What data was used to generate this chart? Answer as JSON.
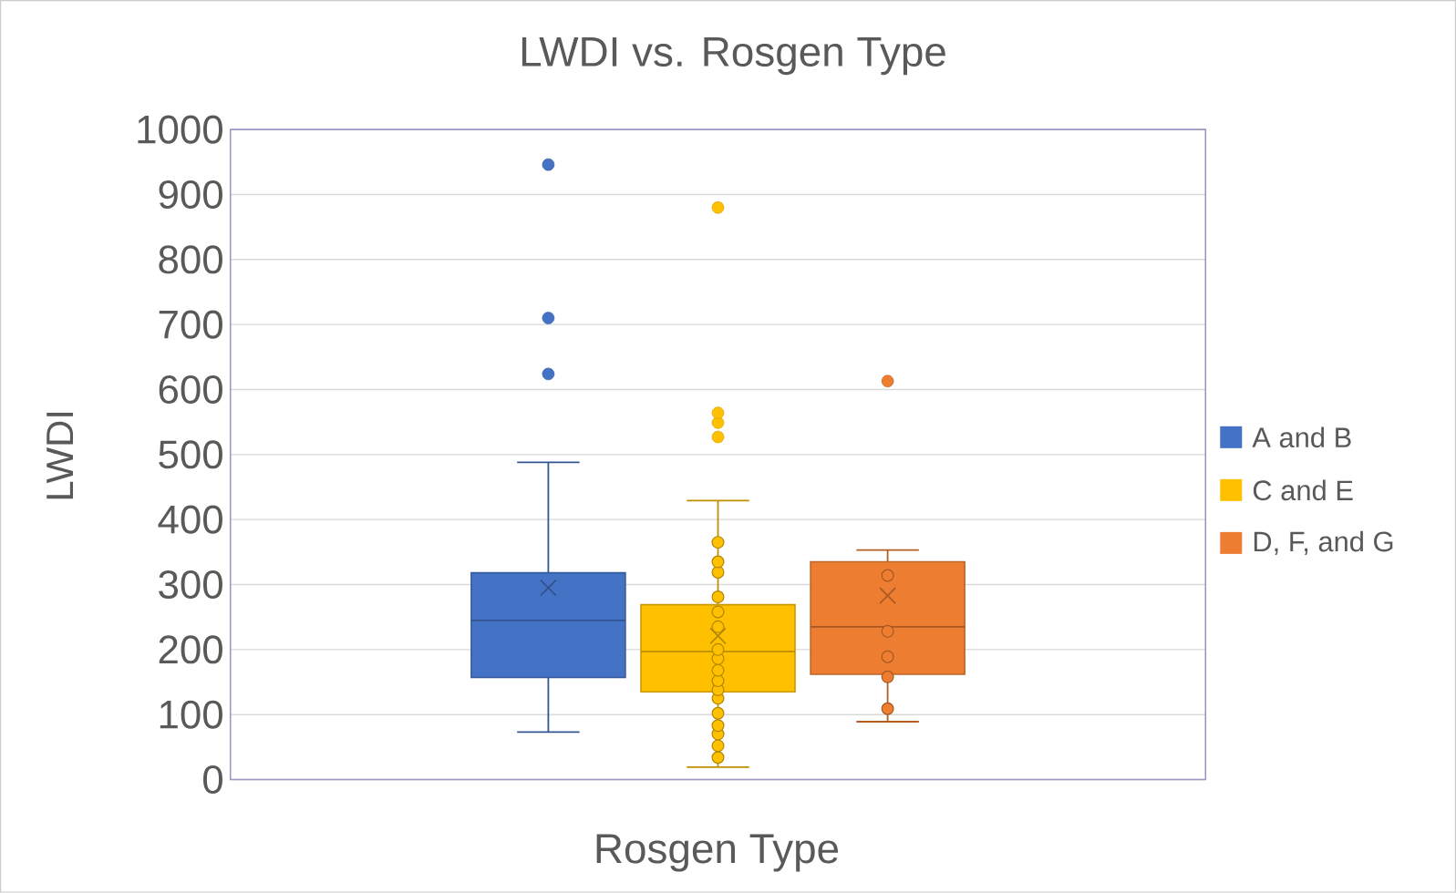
{
  "chart_data": {
    "type": "box",
    "title": "LWDI vs. Rosgen Type",
    "xlabel": "Rosgen Type",
    "ylabel": "LWDI",
    "categories": [
      null
    ],
    "ylim": [
      0,
      1000
    ],
    "yticks": [
      0,
      100,
      200,
      300,
      400,
      500,
      600,
      700,
      800,
      900,
      1000
    ],
    "grid": "y",
    "legend": "right",
    "marker": "circle",
    "series": [
      {
        "name": "A and B",
        "color": "#4472c4",
        "boxes": [
          {
            "low": 73,
            "q1": 157,
            "median": 245,
            "q3": 318,
            "high": 488,
            "mean": 295,
            "outliers": [
              624,
              710,
              946
            ]
          }
        ]
      },
      {
        "name": "C and E",
        "color": "#ffc000",
        "boxes": [
          {
            "low": 19,
            "q1": 135,
            "median": 197,
            "q3": 269,
            "high": 429,
            "mean": 221,
            "outliers": [
              527,
              549,
              564,
              880
            ]
          }
        ]
      },
      {
        "type": "scatter",
        "color": "#ffc000",
        "x": [
          null,
          null,
          null,
          null,
          null,
          null,
          null,
          null,
          null,
          null,
          null,
          null,
          null,
          null,
          null,
          null,
          null
        ],
        "values": [
          34,
          52,
          70,
          83,
          102,
          125,
          138,
          152,
          168,
          186,
          200,
          235,
          258,
          281,
          319,
          335,
          365
        ]
      },
      {
        "name": "D, F, and G",
        "color": "#ed7d31",
        "boxes": [
          {
            "low": 89,
            "q1": 162,
            "median": 235,
            "q3": 335,
            "high": 353,
            "mean": 283,
            "outliers": [
              613
            ]
          }
        ]
      },
      {
        "type": "scatter",
        "color": "#ed7d31",
        "x": [
          null,
          null,
          null,
          null,
          null
        ],
        "values": [
          109,
          158,
          189,
          228,
          314
        ]
      }
    ]
  }
}
